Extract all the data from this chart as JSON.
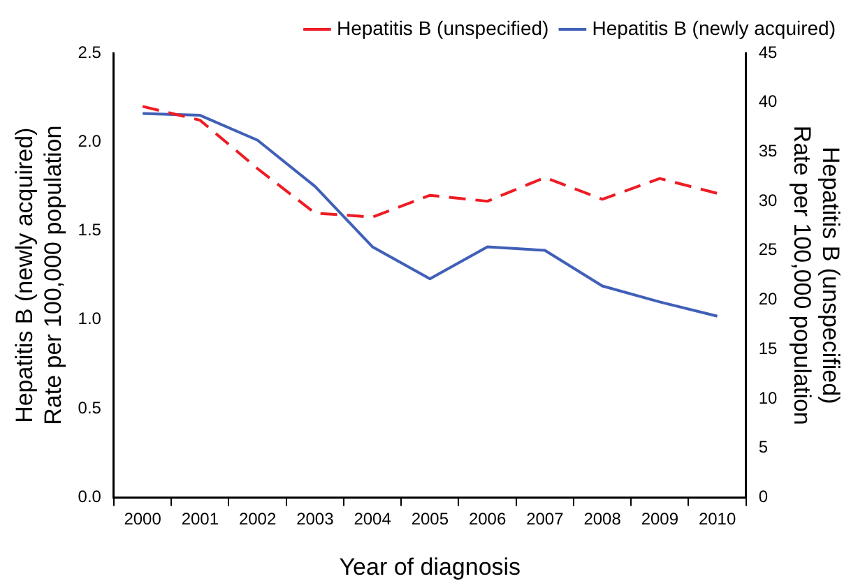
{
  "chart_data": {
    "type": "line",
    "xlabel": "Year of diagnosis",
    "ylabel": "Hepatitis B (newly acquired)\nRate per 100,000 population",
    "y2label": "Hepatitis B (unspecified)\nRate per 100,000 population",
    "categories": [
      "2000",
      "2001",
      "2002",
      "2003",
      "2004",
      "2005",
      "2006",
      "2007",
      "2008",
      "2009",
      "2010"
    ],
    "series": [
      {
        "name": "Hepatitis B (unspecified)",
        "color": "#ee1c24",
        "axis": "y2",
        "line_style": "dashed",
        "values": [
          39.6,
          38.2,
          33.3,
          28.8,
          28.4,
          30.6,
          30.0,
          32.4,
          30.2,
          32.3,
          30.8
        ]
      },
      {
        "name": "Hepatitis B (newly acquired)",
        "color": "#4060b8",
        "line_style": "solid",
        "values": [
          2.16,
          2.15,
          2.01,
          1.75,
          1.41,
          1.23,
          1.41,
          1.39,
          1.19,
          1.1,
          1.02
        ]
      }
    ],
    "ylim": [
      0,
      2.5
    ],
    "yticks": [
      {
        "value": 0,
        "label": "0.0"
      },
      {
        "value": 0.5,
        "label": "0.5"
      },
      {
        "value": 1,
        "label": "1.0"
      },
      {
        "value": 1.5,
        "label": "1.5"
      },
      {
        "value": 2,
        "label": "2.0"
      },
      {
        "value": 2.5,
        "label": "2.5"
      }
    ],
    "y2lim": [
      0,
      45
    ],
    "y2ticks": [
      0,
      5,
      10,
      15,
      20,
      25,
      30,
      35,
      40,
      45
    ],
    "grid": false,
    "legend": "top right",
    "marker": "none"
  }
}
